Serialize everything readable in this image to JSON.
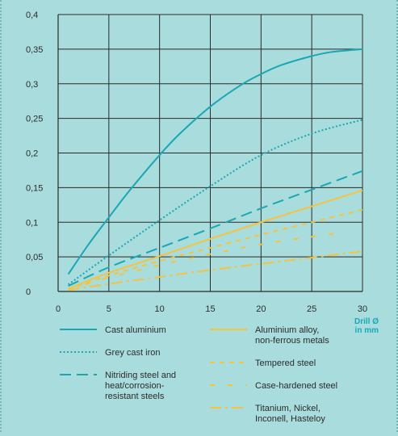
{
  "chart_data": {
    "type": "line",
    "title": "",
    "xlabel": "Drill Ø\nin mm",
    "ylabel": "",
    "xlim": [
      0,
      30
    ],
    "ylim": [
      0,
      0.4
    ],
    "x_ticks": [
      0,
      5,
      10,
      15,
      20,
      25,
      30
    ],
    "x_tick_labels": [
      "0",
      "5",
      "10",
      "15",
      "20",
      "25",
      "30"
    ],
    "y_ticks": [
      0,
      0.05,
      0.1,
      0.15,
      0.2,
      0.25,
      0.3,
      0.35,
      0.4
    ],
    "y_tick_labels": [
      "0",
      "0,05",
      "0,1",
      "0,15",
      "0,2",
      "0,25",
      "0,3",
      "0,35",
      "0,4"
    ],
    "grid": true,
    "legend_placement": "bottom",
    "series": [
      {
        "name": "Cast aluminium",
        "color": "#1aa7b3",
        "style": "solid",
        "x": [
          1,
          3,
          5,
          7,
          10,
          12,
          15,
          18,
          20,
          22,
          25,
          27,
          30
        ],
        "y": [
          0.025,
          0.068,
          0.107,
          0.145,
          0.197,
          0.228,
          0.267,
          0.298,
          0.314,
          0.327,
          0.34,
          0.346,
          0.35
        ]
      },
      {
        "name": "Grey cast iron",
        "color": "#1aa7b3",
        "style": "dotted",
        "x": [
          1,
          5,
          10,
          15,
          20,
          25,
          30
        ],
        "y": [
          0.01,
          0.052,
          0.103,
          0.152,
          0.197,
          0.228,
          0.248
        ]
      },
      {
        "name": "Nitriding steel and\nheat/corrosion-\nresistant steels",
        "color": "#1aa7b3",
        "style": "dashed",
        "x": [
          1,
          5,
          10,
          15,
          20,
          25,
          30
        ],
        "y": [
          0.008,
          0.035,
          0.063,
          0.091,
          0.12,
          0.147,
          0.174
        ]
      },
      {
        "name": "Aluminium alloy,\nnon-ferrous metals",
        "color": "#f5c342",
        "style": "solid",
        "x": [
          1,
          5,
          10,
          15,
          20,
          25,
          30
        ],
        "y": [
          0.004,
          0.027,
          0.051,
          0.076,
          0.1,
          0.123,
          0.146
        ]
      },
      {
        "name": "Tempered steel",
        "color": "#f5c342",
        "style": "dashed-short",
        "x": [
          1,
          5,
          10,
          15,
          20,
          25,
          30
        ],
        "y": [
          0.003,
          0.023,
          0.044,
          0.063,
          0.082,
          0.1,
          0.118
        ]
      },
      {
        "name": "Case-hardened steel",
        "color": "#f5c342",
        "style": "dashed-sparse",
        "x": [
          1,
          5,
          10,
          15,
          20,
          25,
          28
        ],
        "y": [
          0.003,
          0.02,
          0.038,
          0.054,
          0.068,
          0.079,
          0.085
        ]
      },
      {
        "name": "Titanium, Nickel,\nInconell, Hasteloy",
        "color": "#f5c342",
        "style": "dashdot",
        "x": [
          1,
          5,
          10,
          15,
          20,
          25,
          30
        ],
        "y": [
          0.002,
          0.011,
          0.021,
          0.031,
          0.04,
          0.049,
          0.058
        ]
      }
    ]
  }
}
